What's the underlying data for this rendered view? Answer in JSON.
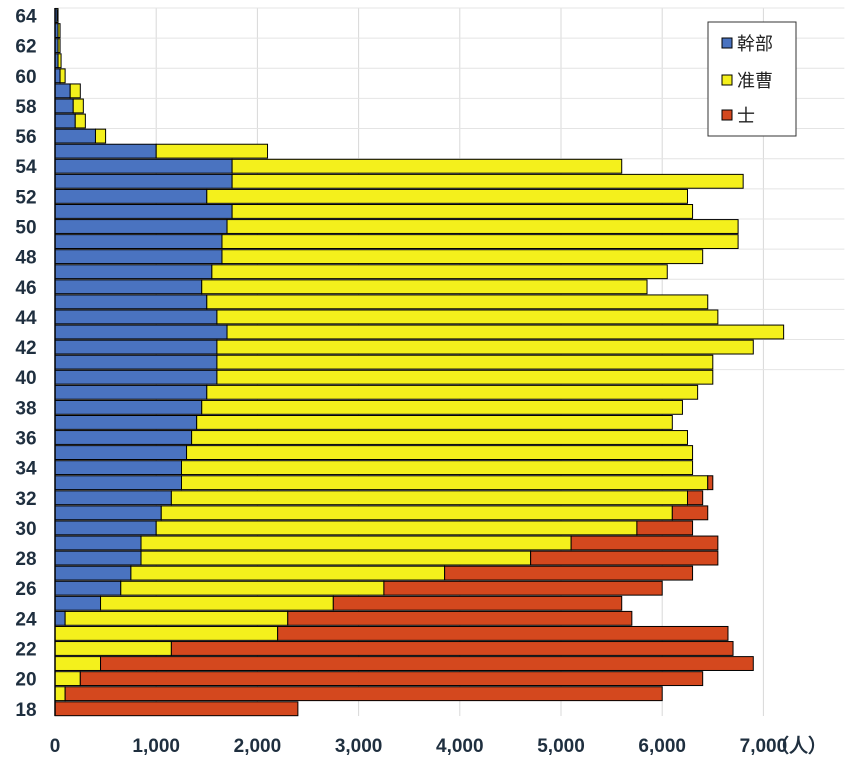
{
  "chart_data": {
    "type": "bar",
    "orientation": "horizontal",
    "stacked": true,
    "x_unit": "（人）",
    "xlim": [
      0,
      7800
    ],
    "x_ticks": [
      0,
      1000,
      2000,
      3000,
      4000,
      5000,
      6000,
      7000
    ],
    "x_tick_labels": [
      "0",
      "1,000",
      "2,000",
      "3,000",
      "4,000",
      "5,000",
      "6,000",
      "7,000"
    ],
    "y_tick_labels": [
      "18",
      "20",
      "22",
      "24",
      "26",
      "28",
      "30",
      "32",
      "34",
      "36",
      "38",
      "40",
      "42",
      "44",
      "46",
      "48",
      "50",
      "52",
      "54",
      "56",
      "58",
      "60",
      "62",
      "64"
    ],
    "grid": true,
    "legend_position": "top-right",
    "categories": [
      18,
      19,
      20,
      21,
      22,
      23,
      24,
      25,
      26,
      27,
      28,
      29,
      30,
      31,
      32,
      33,
      34,
      35,
      36,
      37,
      38,
      39,
      40,
      41,
      42,
      43,
      44,
      45,
      46,
      47,
      48,
      49,
      50,
      51,
      52,
      53,
      54,
      55,
      56,
      57,
      58,
      59,
      60,
      61,
      62,
      63,
      64
    ],
    "series": [
      {
        "name": "幹部",
        "color": "#4a73c0",
        "values": [
          0,
          0,
          0,
          0,
          0,
          0,
          100,
          450,
          650,
          750,
          850,
          850,
          1000,
          1050,
          1150,
          1250,
          1250,
          1300,
          1350,
          1400,
          1450,
          1500,
          1600,
          1600,
          1600,
          1700,
          1600,
          1500,
          1450,
          1550,
          1650,
          1650,
          1700,
          1750,
          1500,
          1750,
          1750,
          1000,
          400,
          200,
          180,
          150,
          50,
          30,
          30,
          30,
          20
        ]
      },
      {
        "name": "准曹",
        "color": "#f4f01c",
        "values": [
          0,
          100,
          250,
          450,
          1150,
          2200,
          2200,
          2300,
          2600,
          3100,
          3850,
          4250,
          4750,
          5050,
          5100,
          5200,
          5050,
          5000,
          4900,
          4700,
          4750,
          4850,
          4900,
          4900,
          5300,
          5500,
          4950,
          4950,
          4400,
          4500,
          4750,
          5100,
          5050,
          4550,
          4750,
          5050,
          3850,
          1100,
          100,
          100,
          100,
          100,
          50,
          30,
          20,
          20,
          10
        ]
      },
      {
        "name": "士",
        "color": "#d4481e",
        "values": [
          2400,
          5900,
          6150,
          6450,
          5550,
          4450,
          3400,
          2850,
          2750,
          2450,
          1850,
          1450,
          550,
          350,
          150,
          50,
          0,
          0,
          0,
          0,
          0,
          0,
          0,
          0,
          0,
          0,
          0,
          0,
          0,
          0,
          0,
          0,
          0,
          0,
          0,
          0,
          0,
          0,
          0,
          0,
          0,
          0,
          0,
          0,
          0,
          0,
          0
        ]
      }
    ]
  }
}
